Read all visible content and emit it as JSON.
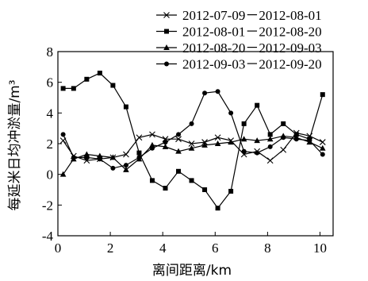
{
  "chart_data": {
    "type": "line",
    "title": "",
    "xlabel": "离间距离/km",
    "ylabel": "每延米日均冲淤量/m³",
    "xlim": [
      0,
      10.5
    ],
    "ylim": [
      -4,
      8
    ],
    "xticks": [
      0,
      2,
      4,
      6,
      8,
      10
    ],
    "yticks": [
      -4,
      -2,
      0,
      2,
      4,
      6,
      8
    ],
    "xtick_labels": [
      "0",
      "2",
      "4",
      "6",
      "8",
      "10"
    ],
    "ytick_labels": [
      "-4",
      "-2",
      "0",
      "2",
      "4",
      "6",
      "8"
    ],
    "grid": false,
    "legend_position": "top-right",
    "series": [
      {
        "name": "2012-07-09－2012-08-01",
        "marker": "x",
        "x": [
          0.2,
          0.6,
          1.1,
          1.6,
          2.1,
          2.6,
          3.1,
          3.6,
          4.1,
          4.6,
          5.1,
          5.6,
          6.1,
          6.6,
          7.1,
          7.6,
          8.1,
          8.6,
          9.1,
          9.6,
          10.1
        ],
        "y": [
          2.2,
          1.2,
          0.9,
          1.0,
          1.1,
          1.3,
          2.4,
          2.6,
          2.3,
          2.3,
          2.0,
          2.1,
          2.4,
          2.2,
          1.3,
          1.5,
          0.9,
          1.6,
          2.7,
          2.5,
          2.1
        ]
      },
      {
        "name": "2012-08-01－2012-08-20",
        "marker": "square",
        "x": [
          0.2,
          0.6,
          1.1,
          1.6,
          2.1,
          2.6,
          3.1,
          3.6,
          4.1,
          4.6,
          5.1,
          5.6,
          6.1,
          6.6,
          7.1,
          7.6,
          8.1,
          8.6,
          9.1,
          9.6,
          10.1
        ],
        "y": [
          5.6,
          5.6,
          6.2,
          6.6,
          5.8,
          4.4,
          1.4,
          -0.4,
          -0.9,
          0.2,
          -0.4,
          -1.0,
          -2.2,
          -1.1,
          3.3,
          4.5,
          2.6,
          3.3,
          2.6,
          2.3,
          5.2
        ]
      },
      {
        "name": "2012-08-20－2012-09-03",
        "marker": "triangle",
        "x": [
          0.2,
          0.6,
          1.1,
          1.6,
          2.1,
          2.6,
          3.1,
          3.6,
          4.1,
          4.6,
          5.1,
          5.6,
          6.1,
          6.6,
          7.1,
          7.6,
          8.1,
          8.6,
          9.1,
          9.6,
          10.1
        ],
        "y": [
          0.0,
          1.0,
          1.3,
          1.2,
          1.1,
          0.3,
          1.0,
          1.9,
          1.8,
          1.5,
          1.7,
          1.9,
          2.0,
          2.1,
          2.3,
          2.2,
          2.3,
          2.5,
          2.4,
          2.1,
          1.7
        ]
      },
      {
        "name": "2012-09-03－2012-09-20",
        "marker": "circle",
        "x": [
          0.2,
          0.6,
          1.1,
          1.6,
          2.1,
          2.6,
          3.1,
          3.6,
          4.1,
          4.6,
          5.1,
          5.6,
          6.1,
          6.6,
          7.1,
          7.6,
          8.1,
          8.6,
          9.1,
          9.6,
          10.1
        ],
        "y": [
          2.6,
          1.1,
          1.1,
          1.0,
          0.4,
          0.6,
          1.1,
          1.7,
          2.1,
          2.6,
          3.3,
          5.3,
          5.4,
          4.0,
          1.5,
          1.4,
          1.8,
          2.4,
          2.3,
          2.2,
          1.3
        ]
      }
    ]
  }
}
